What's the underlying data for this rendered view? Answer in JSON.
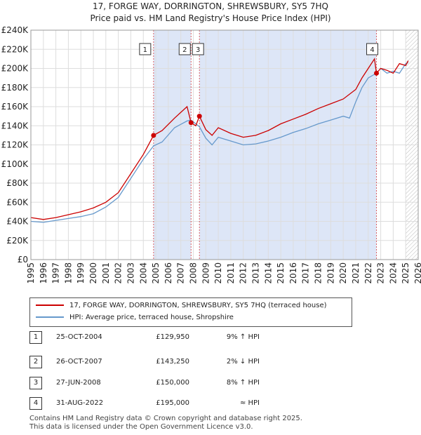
{
  "title_line1": "17, FORGE WAY, DORRINGTON, SHREWSBURY, SY5 7HQ",
  "title_line2": "Price paid vs. HM Land Registry's House Price Index (HPI)",
  "legend": {
    "property": "17, FORGE WAY, DORRINGTON, SHREWSBURY, SY5 7HQ (terraced house)",
    "hpi": "HPI: Average price, terraced house, Shropshire"
  },
  "sales": [
    {
      "num": "1",
      "date": "25-OCT-2004",
      "price": "£129,950",
      "hpi": "9% ↑ HPI"
    },
    {
      "num": "2",
      "date": "26-OCT-2007",
      "price": "£143,250",
      "hpi": "2% ↓ HPI"
    },
    {
      "num": "3",
      "date": "27-JUN-2008",
      "price": "£150,000",
      "hpi": "8% ↑ HPI"
    },
    {
      "num": "4",
      "date": "31-AUG-2022",
      "price": "£195,000",
      "hpi": "≈ HPI"
    }
  ],
  "footer": {
    "line1": "Contains HM Land Registry data © Crown copyright and database right 2025.",
    "line2": "This data is licensed under the Open Government Licence v3.0."
  },
  "chart_data": {
    "type": "line",
    "title": "17, FORGE WAY, DORRINGTON, SHREWSBURY, SY5 7HQ",
    "subtitle": "Price paid vs. HM Land Registry's House Price Index (HPI)",
    "xlim": [
      1995,
      2026
    ],
    "ylim": [
      0,
      240000
    ],
    "x_ticks": [
      1995,
      1996,
      1997,
      1998,
      1999,
      2000,
      2001,
      2002,
      2003,
      2004,
      2005,
      2006,
      2007,
      2008,
      2009,
      2010,
      2011,
      2012,
      2013,
      2014,
      2015,
      2016,
      2017,
      2018,
      2019,
      2020,
      2021,
      2022,
      2023,
      2024,
      2025,
      2026
    ],
    "y_ticks": [
      0,
      20000,
      40000,
      60000,
      80000,
      100000,
      120000,
      140000,
      160000,
      180000,
      200000,
      220000,
      240000
    ],
    "y_tick_labels": [
      "£0",
      "£20K",
      "£40K",
      "£60K",
      "£80K",
      "£100K",
      "£120K",
      "£140K",
      "£160K",
      "£180K",
      "£200K",
      "£220K",
      "£240K"
    ],
    "grid": true,
    "legend_position": "below",
    "colors": {
      "property": "#cc0000",
      "hpi": "#6699cc",
      "shade": "#dde6f7",
      "vline": "#cc0000"
    },
    "shaded_periods": [
      [
        2004.82,
        2007.82
      ],
      [
        2008.49,
        2022.66
      ]
    ],
    "hatched_after": 2025.0,
    "series": [
      {
        "name": "17, FORGE WAY, DORRINGTON, SHREWSBURY, SY5 7HQ (terraced house)",
        "x": [
          1995,
          1996,
          1997,
          1998,
          1999,
          2000,
          2001,
          2002,
          2003,
          2004,
          2004.82,
          2005.5,
          2006.5,
          2007.5,
          2007.82,
          2008.2,
          2008.49,
          2009,
          2009.5,
          2010,
          2011,
          2012,
          2013,
          2014,
          2015,
          2016,
          2017,
          2018,
          2019,
          2020,
          2021,
          2021.5,
          2022,
          2022.5,
          2022.66,
          2023,
          2023.5,
          2024,
          2024.5,
          2025,
          2025.2
        ],
        "y": [
          44000,
          42000,
          44000,
          47000,
          50000,
          54000,
          60000,
          70000,
          90000,
          110000,
          129950,
          135000,
          148000,
          160000,
          143250,
          140000,
          150000,
          136000,
          130000,
          138000,
          132000,
          128000,
          130000,
          135000,
          142000,
          147000,
          152000,
          158000,
          163000,
          168000,
          178000,
          190000,
          200000,
          210000,
          195000,
          200000,
          198000,
          195000,
          205000,
          203000,
          208000
        ]
      },
      {
        "name": "HPI: Average price, terraced house, Shropshire",
        "x": [
          1995,
          1996,
          1997,
          1998,
          1999,
          2000,
          2001,
          2002,
          2003,
          2004,
          2004.82,
          2005.5,
          2006.5,
          2007.5,
          2007.82,
          2008.49,
          2009,
          2009.5,
          2010,
          2011,
          2012,
          2013,
          2014,
          2015,
          2016,
          2017,
          2018,
          2019,
          2020,
          2020.5,
          2021,
          2021.5,
          2022,
          2022.66,
          2023,
          2023.5,
          2024,
          2024.5,
          2025,
          2025.2
        ],
        "y": [
          40000,
          39000,
          41000,
          43000,
          45000,
          48000,
          55000,
          65000,
          85000,
          105000,
          119000,
          123000,
          138000,
          145000,
          146000,
          139000,
          127000,
          120000,
          128000,
          124000,
          120000,
          121000,
          124000,
          128000,
          133000,
          137000,
          142000,
          146000,
          150000,
          148000,
          165000,
          180000,
          190000,
          195000,
          200000,
          195000,
          197000,
          195000,
          205000,
          206000
        ]
      }
    ],
    "sale_markers": [
      {
        "label": "1",
        "x": 2004.82,
        "y": 129950
      },
      {
        "label": "2",
        "x": 2007.82,
        "y": 143250
      },
      {
        "label": "3",
        "x": 2008.49,
        "y": 150000
      },
      {
        "label": "4",
        "x": 2022.66,
        "y": 195000
      }
    ]
  }
}
